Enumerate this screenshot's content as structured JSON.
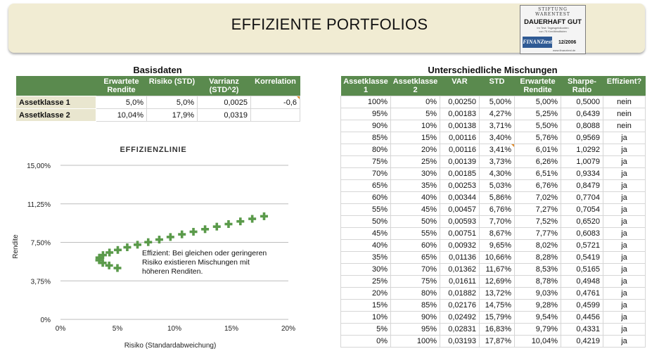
{
  "title": "EFFIZIENTE PORTFOLIOS",
  "badge": {
    "top": "STIFTUNG WARENTEST",
    "main": "DAUERHAFT GUT",
    "small1": "Im Test: Tagesgeldkonten",
    "small2": "von 75 Kreditinstituten",
    "logo": "FINANZtest",
    "date": "12/2006",
    "url": "www.finanztest.de"
  },
  "basisdaten": {
    "title": "Basisdaten",
    "headers": [
      "",
      "Erwartete Rendite",
      "Risiko (STD)",
      "Varrianz (STD^2)",
      "Korrelation"
    ],
    "rows": [
      [
        "Assetklasse 1",
        "5,0%",
        "5,0%",
        "0,0025",
        "-0,6"
      ],
      [
        "Assetklasse 2",
        "10,04%",
        "17,9%",
        "0,0319",
        ""
      ]
    ]
  },
  "mischungen": {
    "title": "Unterschiedliche Mischungen",
    "headers": [
      "Assetklasse 1",
      "Assetklasse 2",
      "VAR",
      "STD",
      "Erwartete Rendite",
      "Sharpe-Ratio",
      "Effizient?"
    ],
    "rows": [
      [
        "100%",
        "0%",
        "0,00250",
        "5,00%",
        "5,00%",
        "0,5000",
        "nein"
      ],
      [
        "95%",
        "5%",
        "0,00183",
        "4,27%",
        "5,25%",
        "0,6439",
        "nein"
      ],
      [
        "90%",
        "10%",
        "0,00138",
        "3,71%",
        "5,50%",
        "0,8088",
        "nein"
      ],
      [
        "85%",
        "15%",
        "0,00116",
        "3,40%",
        "5,76%",
        "0,9569",
        "ja"
      ],
      [
        "80%",
        "20%",
        "0,00116",
        "3,41%",
        "6,01%",
        "1,0292",
        "ja"
      ],
      [
        "75%",
        "25%",
        "0,00139",
        "3,73%",
        "6,26%",
        "1,0079",
        "ja"
      ],
      [
        "70%",
        "30%",
        "0,00185",
        "4,30%",
        "6,51%",
        "0,9334",
        "ja"
      ],
      [
        "65%",
        "35%",
        "0,00253",
        "5,03%",
        "6,76%",
        "0,8479",
        "ja"
      ],
      [
        "60%",
        "40%",
        "0,00344",
        "5,86%",
        "7,02%",
        "0,7704",
        "ja"
      ],
      [
        "55%",
        "45%",
        "0,00457",
        "6,76%",
        "7,27%",
        "0,7054",
        "ja"
      ],
      [
        "50%",
        "50%",
        "0,00593",
        "7,70%",
        "7,52%",
        "0,6520",
        "ja"
      ],
      [
        "45%",
        "55%",
        "0,00751",
        "8,67%",
        "7,77%",
        "0,6083",
        "ja"
      ],
      [
        "40%",
        "60%",
        "0,00932",
        "9,65%",
        "8,02%",
        "0,5721",
        "ja"
      ],
      [
        "35%",
        "65%",
        "0,01136",
        "10,66%",
        "8,28%",
        "0,5419",
        "ja"
      ],
      [
        "30%",
        "70%",
        "0,01362",
        "11,67%",
        "8,53%",
        "0,5165",
        "ja"
      ],
      [
        "25%",
        "75%",
        "0,01611",
        "12,69%",
        "8,78%",
        "0,4948",
        "ja"
      ],
      [
        "20%",
        "80%",
        "0,01882",
        "13,72%",
        "9,03%",
        "0,4761",
        "ja"
      ],
      [
        "15%",
        "85%",
        "0,02176",
        "14,75%",
        "9,28%",
        "0,4599",
        "ja"
      ],
      [
        "10%",
        "90%",
        "0,02492",
        "15,79%",
        "9,54%",
        "0,4456",
        "ja"
      ],
      [
        "5%",
        "95%",
        "0,02831",
        "16,83%",
        "9,79%",
        "0,4331",
        "ja"
      ],
      [
        "0%",
        "100%",
        "0,03193",
        "17,87%",
        "10,04%",
        "0,4219",
        "ja"
      ]
    ]
  },
  "chart_data": {
    "type": "scatter",
    "title": "EFFIZIENZLINIE",
    "xlabel": "Risiko (Standardabweichung)",
    "ylabel": "Rendite",
    "xlim": [
      0,
      0.2
    ],
    "ylim": [
      0,
      0.15
    ],
    "x_ticks": [
      "0%",
      "5%",
      "10%",
      "15%",
      "20%"
    ],
    "x_tick_values": [
      0,
      0.05,
      0.1,
      0.15,
      0.2
    ],
    "y_ticks": [
      "0%",
      "3,75%",
      "7,50%",
      "11,25%",
      "15,00%"
    ],
    "y_tick_values": [
      0,
      0.0375,
      0.075,
      0.1125,
      0.15
    ],
    "grid": "horizontal",
    "annotation": [
      "Effizient: Bei gleichen oder geringeren",
      "Risiko existieren Mischungen mit",
      "höheren Renditen."
    ],
    "series": [
      {
        "name": "Portfolios",
        "color": "#5a9a4a",
        "x": [
          0.05,
          0.0427,
          0.0371,
          0.034,
          0.0341,
          0.0373,
          0.043,
          0.0503,
          0.0586,
          0.0676,
          0.077,
          0.0867,
          0.0965,
          0.1066,
          0.1167,
          0.1269,
          0.1372,
          0.1475,
          0.1579,
          0.1683,
          0.1787
        ],
        "y": [
          0.05,
          0.0525,
          0.055,
          0.0576,
          0.0601,
          0.0626,
          0.0651,
          0.0676,
          0.0702,
          0.0727,
          0.0752,
          0.0777,
          0.0802,
          0.0828,
          0.0853,
          0.0878,
          0.0903,
          0.0928,
          0.0954,
          0.0979,
          0.1004
        ]
      }
    ]
  },
  "colors": {
    "header_bg": "#f1ecd3",
    "table_header": "#5a8a4e",
    "row_label_bg": "#e9e6cf",
    "marker": "#5a9a4a"
  }
}
